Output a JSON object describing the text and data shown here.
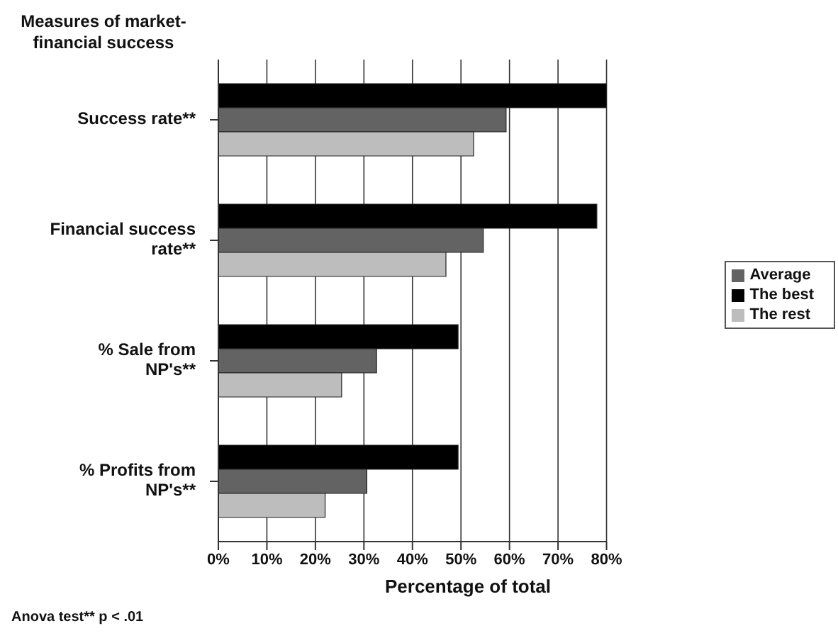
{
  "chart_data": {
    "type": "bar",
    "orientation": "horizontal",
    "title": "Measures of market-financial success",
    "xlabel": "Percentage of total",
    "categories": [
      "Success rate**",
      "Financial success rate**",
      "% Sale from NP's**",
      "% Profits from NP's**"
    ],
    "series": [
      {
        "name": "The best",
        "color": "#000000",
        "values": [
          80,
          78,
          49.4,
          49.4
        ]
      },
      {
        "name": "Average",
        "color": "#636363",
        "values": [
          59.3,
          54.6,
          32.6,
          30.6
        ]
      },
      {
        "name": "The rest",
        "color": "#bdbdbd",
        "values": [
          52.6,
          46.9,
          25.4,
          22
        ]
      }
    ],
    "xlim": [
      0,
      80
    ],
    "xticks": [
      {
        "value": 0,
        "label": "0%"
      },
      {
        "value": 10,
        "label": "10%"
      },
      {
        "value": 20,
        "label": "20%"
      },
      {
        "value": 30,
        "label": "30%"
      },
      {
        "value": 40,
        "label": "40%"
      },
      {
        "value": 50,
        "label": "50%"
      },
      {
        "value": 60,
        "label": "60%"
      },
      {
        "value": 70,
        "label": "70%"
      },
      {
        "value": 80,
        "label": "80%"
      }
    ],
    "grid": "x",
    "legend": "right",
    "annotations": [
      "Anova test** p < .01"
    ]
  }
}
